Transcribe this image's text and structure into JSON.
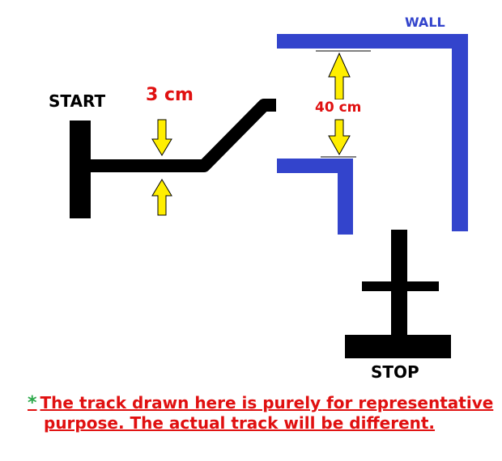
{
  "labels": {
    "start": "START",
    "stop": "STOP",
    "wall": "WALL",
    "track_width": "3 cm",
    "gap_width": "40 cm"
  },
  "note": {
    "star": "*",
    "line1": "The track drawn here is purely for representative",
    "line2": "purpose. The actual track will be different."
  },
  "colors": {
    "track": "#000000",
    "wall": "#3344cc",
    "arrow_fill": "#ffee00",
    "dimension_text": "#e01010",
    "note_text": "#e01010",
    "note_star": "#2ca84a"
  },
  "icons": {
    "arrow": "yellow-arrow-icon"
  }
}
